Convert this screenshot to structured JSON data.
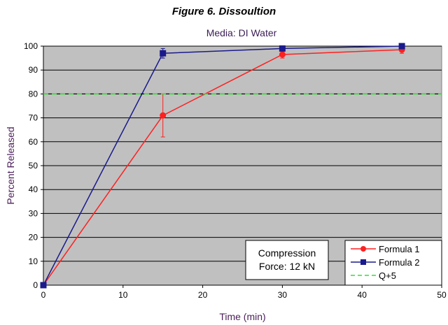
{
  "figure_title": "Figure 6. Dissoultion",
  "chart_data": {
    "type": "line",
    "title": "Media: DI Water",
    "xlabel": "Time (min)",
    "ylabel": "Percent Released",
    "xlim": [
      0,
      50
    ],
    "ylim": [
      0,
      100
    ],
    "x_ticks": [
      0,
      10,
      20,
      30,
      40,
      50
    ],
    "y_ticks": [
      0,
      10,
      20,
      30,
      40,
      50,
      60,
      70,
      80,
      90,
      100
    ],
    "grid": "horizontal",
    "plot_background": "#c0c0c0",
    "legend_position": "bottom-right",
    "series": [
      {
        "name": "Formula 1",
        "color": "#ff2020",
        "marker": "circle",
        "x": [
          0,
          15,
          30,
          45
        ],
        "y": [
          0,
          71,
          96.5,
          98.5
        ],
        "error": [
          0,
          9,
          1.5,
          1.5
        ]
      },
      {
        "name": "Formula 2",
        "color": "#1a1a8c",
        "marker": "square",
        "x": [
          0,
          15,
          30,
          45
        ],
        "y": [
          0,
          97,
          99,
          100
        ],
        "error": [
          0,
          2,
          1,
          1
        ]
      },
      {
        "name": "Q+5",
        "color": "#33dd33",
        "style": "dashed",
        "x": [
          0,
          50
        ],
        "y": [
          80,
          80
        ]
      }
    ],
    "annotation": [
      "Compression",
      "Force: 12 kN"
    ]
  }
}
